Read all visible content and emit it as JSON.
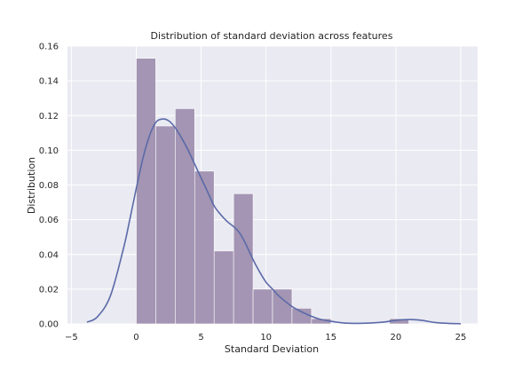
{
  "chart_data": {
    "type": "bar",
    "title": "Distribution of standard deviation across features",
    "xlabel": "Standard Deviation",
    "ylabel": "Distribution",
    "xlim": [
      -5.3,
      26.3
    ],
    "ylim": [
      0,
      0.16
    ],
    "x_ticks": [
      -5,
      0,
      5,
      10,
      15,
      20,
      25
    ],
    "x_tick_labels": [
      "−5",
      "0",
      "5",
      "10",
      "15",
      "20",
      "25"
    ],
    "y_ticks": [
      0,
      0.02,
      0.04,
      0.06,
      0.08,
      0.1,
      0.12,
      0.14,
      0.16
    ],
    "y_tick_labels": [
      "0.00",
      "0.02",
      "0.04",
      "0.06",
      "0.08",
      "0.10",
      "0.12",
      "0.14",
      "0.16"
    ],
    "grid": true,
    "histogram": {
      "bin_edges": [
        0,
        1.5,
        3,
        4.5,
        6,
        7.5,
        9,
        10.5,
        12,
        13.5,
        15,
        16.5,
        18,
        19.5,
        21,
        22.5
      ],
      "values": [
        0.153,
        0.114,
        0.124,
        0.088,
        0.042,
        0.075,
        0.02,
        0.02,
        0.009,
        0.003,
        0,
        0,
        0,
        0.003,
        0
      ],
      "color": "#a395b3"
    },
    "kde": {
      "x": [
        -3.8,
        -3.0,
        -2.0,
        -1.0,
        -0.5,
        0,
        0.5,
        1.0,
        1.5,
        2.0,
        2.5,
        3.0,
        3.5,
        4.0,
        4.5,
        5.0,
        5.5,
        6.0,
        6.5,
        7.0,
        7.5,
        8.0,
        8.5,
        9.0,
        9.5,
        10.0,
        10.5,
        11.0,
        12.0,
        13.0,
        14.0,
        15.0,
        16.0,
        17.0,
        18.0,
        19.0,
        20.0,
        21.0,
        22.0,
        23.0,
        24.0,
        25.0
      ],
      "y": [
        0.001,
        0.004,
        0.016,
        0.043,
        0.06,
        0.078,
        0.095,
        0.108,
        0.116,
        0.118,
        0.117,
        0.113,
        0.107,
        0.1,
        0.092,
        0.084,
        0.076,
        0.068,
        0.063,
        0.059,
        0.056,
        0.052,
        0.045,
        0.037,
        0.03,
        0.024,
        0.02,
        0.016,
        0.01,
        0.006,
        0.003,
        0.0015,
        0.0005,
        0.0003,
        0.0005,
        0.001,
        0.002,
        0.0025,
        0.002,
        0.0008,
        0.0003,
        0.0001
      ],
      "color": "#5b6aa8"
    }
  }
}
